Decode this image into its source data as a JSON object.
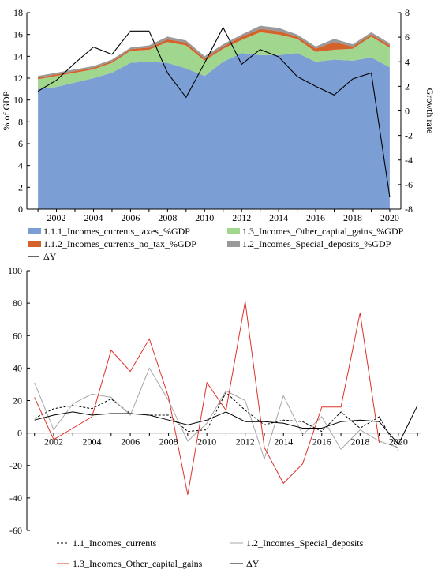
{
  "chart_data": [
    {
      "type": "area",
      "x": [
        2001,
        2002,
        2003,
        2004,
        2005,
        2006,
        2007,
        2008,
        2009,
        2010,
        2011,
        2012,
        2013,
        2014,
        2015,
        2016,
        2017,
        2018,
        2019,
        2020
      ],
      "x_ticks": [
        "2002",
        "2004",
        "2006",
        "2008",
        "2010",
        "2012",
        "2014",
        "2016",
        "2018",
        "2020"
      ],
      "ylabel": "% of GDP",
      "ylim": [
        0,
        18
      ],
      "y_ticks": [
        "0",
        "2",
        "4",
        "6",
        "8",
        "10",
        "12",
        "14",
        "16",
        "18"
      ],
      "y2label": "Growth rate",
      "y2lim": [
        -8,
        8
      ],
      "y2_ticks": [
        "-8",
        "-6",
        "-4",
        "-2",
        "0",
        "2",
        "4",
        "6",
        "8"
      ],
      "legend_position": "bottom",
      "series": [
        {
          "name": "1.1.1_Incomes_currents_taxes_%GDP",
          "axis": "left",
          "stack": true,
          "color": "#7b9fd5",
          "values": [
            11.0,
            11.2,
            11.6,
            12.0,
            12.5,
            13.4,
            13.5,
            13.4,
            12.9,
            12.2,
            13.5,
            14.3,
            14.1,
            14.1,
            14.3,
            13.5,
            13.7,
            13.6,
            13.9,
            13.0
          ]
        },
        {
          "name": "1.3_Incomes_Other_capital_gains_%GDP",
          "axis": "left",
          "stack": true,
          "color": "#a0d68d",
          "values": [
            0.9,
            1.0,
            0.9,
            0.8,
            0.9,
            1.1,
            1.1,
            1.9,
            2.1,
            1.4,
            1.2,
            1.2,
            2.1,
            1.9,
            1.3,
            0.9,
            0.9,
            1.1,
            1.9,
            1.8
          ]
        },
        {
          "name": "1.1.2_Incomes_currents_no_tax_%GDP",
          "axis": "left",
          "stack": true,
          "color": "#d4622b",
          "values": [
            0.15,
            0.15,
            0.15,
            0.15,
            0.15,
            0.15,
            0.2,
            0.25,
            0.25,
            0.2,
            0.2,
            0.3,
            0.3,
            0.3,
            0.2,
            0.3,
            0.7,
            0.2,
            0.2,
            0.2
          ]
        },
        {
          "name": "1.2_Incomes_Special_deposits_%GDP",
          "axis": "left",
          "stack": true,
          "color": "#999999",
          "values": [
            0.15,
            0.15,
            0.15,
            0.15,
            0.15,
            0.15,
            0.2,
            0.25,
            0.2,
            0.2,
            0.2,
            0.2,
            0.3,
            0.3,
            0.2,
            0.2,
            0.3,
            0.2,
            0.2,
            0.2
          ]
        },
        {
          "name": "ΔY",
          "axis": "right",
          "type": "line",
          "color": "#000000",
          "values": [
            1.6,
            2.5,
            3.9,
            5.2,
            4.6,
            6.5,
            6.5,
            3.1,
            1.1,
            3.9,
            6.8,
            3.8,
            5.0,
            4.4,
            2.8,
            2.0,
            1.3,
            2.6,
            3.1,
            -7.0
          ]
        }
      ]
    },
    {
      "type": "line",
      "x": [
        2001,
        2002,
        2003,
        2004,
        2005,
        2006,
        2007,
        2008,
        2009,
        2010,
        2011,
        2012,
        2013,
        2014,
        2015,
        2016,
        2017,
        2018,
        2019,
        2020,
        2021
      ],
      "x_ticks": [
        "2002",
        "2004",
        "2006",
        "2008",
        "2010",
        "2012",
        "2014",
        "2016",
        "2018",
        "2020"
      ],
      "ylim": [
        -60,
        100
      ],
      "y_ticks": [
        "-60",
        "-40",
        "-20",
        "0",
        "20",
        "40",
        "60",
        "80",
        "100"
      ],
      "legend_position": "bottom",
      "series": [
        {
          "name": "1.1_Incomes_currents",
          "color": "#000000",
          "dash": "3,2",
          "values": [
            9,
            15,
            17,
            15,
            21,
            12,
            11,
            11,
            1,
            2,
            25,
            14,
            5,
            8,
            7,
            1,
            13,
            3,
            10,
            -11,
            null
          ]
        },
        {
          "name": "1.2_Incomes_Special_deposits",
          "color": "#a6a6a6",
          "dash": "",
          "values": [
            31,
            2,
            18,
            24,
            22,
            11,
            40,
            20,
            -5,
            6,
            26,
            20,
            -16,
            23,
            -1,
            10,
            -10,
            2,
            -5,
            -9,
            null
          ]
        },
        {
          "name": "1.3_Incomes_Other_capital_gains",
          "color": "#e0302a",
          "dash": "",
          "values": [
            22,
            -4,
            3,
            10,
            51,
            38,
            58,
            22,
            -38,
            31,
            14,
            81,
            -9,
            -31,
            -19,
            16,
            16,
            74,
            -6,
            null,
            null
          ]
        },
        {
          "name": "ΔY",
          "color": "#000000",
          "dash": "",
          "values": [
            8,
            11,
            13,
            11,
            12,
            12,
            11,
            8,
            5,
            8,
            13,
            7,
            7,
            6,
            3,
            3,
            7,
            8,
            7,
            -7,
            17
          ]
        }
      ]
    }
  ]
}
